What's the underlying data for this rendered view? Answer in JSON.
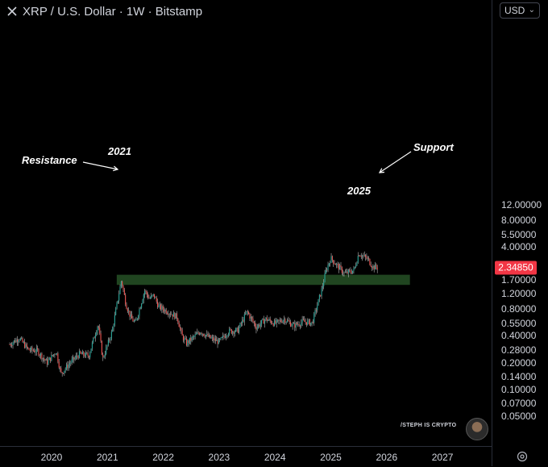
{
  "header": {
    "title": "XRP / U.S. Dollar · 1W · Bitstamp"
  },
  "currency": {
    "label": "USD"
  },
  "watermark": "/STEPH IS CRYPTO",
  "chart_data": {
    "type": "candlestick",
    "title": "XRP / U.S. Dollar · 1W · Bitstamp",
    "y_scale": "log",
    "ylim": [
      0.043,
      13.5
    ],
    "y_ticks": [
      "12.00000",
      "8.00000",
      "5.50000",
      "4.00000",
      "2.50000",
      "1.70000",
      "1.20000",
      "0.80000",
      "0.55000",
      "0.40000",
      "0.28000",
      "0.20000",
      "0.14000",
      "0.10000",
      "0.07000",
      "0.05000"
    ],
    "current_price": "2.34850",
    "x_ticks": [
      "2020",
      "2021",
      "2022",
      "2023",
      "2024",
      "2025",
      "2026",
      "2027"
    ],
    "zone": {
      "low": 1.5,
      "high": 1.95,
      "from": "2021-03",
      "to": "2026-06"
    },
    "annotations": [
      "Resistance",
      "2021",
      "Support",
      "2025"
    ],
    "colors": {
      "up": "#26a69a",
      "down": "#ef5350",
      "wick": "#b9b9b9",
      "zone": "#3a7d3a",
      "price_label": "#f23645"
    },
    "anchor_prices": [
      [
        "2019-04",
        0.32
      ],
      [
        "2019-06",
        0.38
      ],
      [
        "2019-08",
        0.28
      ],
      [
        "2019-10",
        0.27
      ],
      [
        "2019-12",
        0.2
      ],
      [
        "2020-02",
        0.27
      ],
      [
        "2020-03",
        0.15
      ],
      [
        "2020-05",
        0.2
      ],
      [
        "2020-07",
        0.25
      ],
      [
        "2020-09",
        0.24
      ],
      [
        "2020-11",
        0.55
      ],
      [
        "2020-12",
        0.22
      ],
      [
        "2021-02",
        0.45
      ],
      [
        "2021-04",
        1.7
      ],
      [
        "2021-05",
        0.9
      ],
      [
        "2021-06",
        0.65
      ],
      [
        "2021-07",
        0.55
      ],
      [
        "2021-09",
        1.3
      ],
      [
        "2021-10",
        1.05
      ],
      [
        "2021-11",
        1.15
      ],
      [
        "2021-12",
        0.85
      ],
      [
        "2022-02",
        0.75
      ],
      [
        "2022-04",
        0.65
      ],
      [
        "2022-05",
        0.4
      ],
      [
        "2022-06",
        0.33
      ],
      [
        "2022-09",
        0.45
      ],
      [
        "2022-11",
        0.38
      ],
      [
        "2023-01",
        0.34
      ],
      [
        "2023-03",
        0.45
      ],
      [
        "2023-05",
        0.46
      ],
      [
        "2023-07",
        0.75
      ],
      [
        "2023-09",
        0.5
      ],
      [
        "2023-11",
        0.62
      ],
      [
        "2024-01",
        0.55
      ],
      [
        "2024-03",
        0.62
      ],
      [
        "2024-05",
        0.52
      ],
      [
        "2024-07",
        0.58
      ],
      [
        "2024-09",
        0.56
      ],
      [
        "2024-11",
        1.3
      ],
      [
        "2024-12",
        2.2
      ],
      [
        "2025-01",
        3.0
      ],
      [
        "2025-02",
        2.6
      ],
      [
        "2025-04",
        2.0
      ],
      [
        "2025-06",
        2.2
      ],
      [
        "2025-07",
        3.4
      ],
      [
        "2025-09",
        2.9
      ],
      [
        "2025-10",
        2.4
      ],
      [
        "2025-11",
        2.3485
      ]
    ]
  }
}
